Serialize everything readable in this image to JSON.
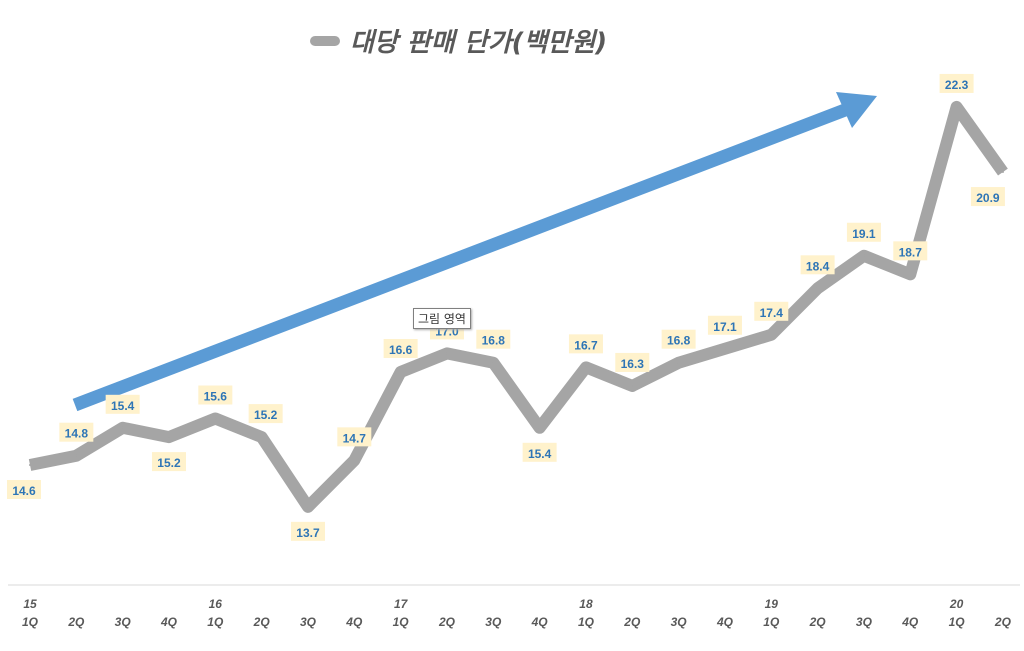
{
  "chart_data": {
    "type": "line",
    "title": "대당 판매 단가(백만원)",
    "legend": {
      "position": "top",
      "entries": [
        "대당 판매 단가(백만원)"
      ]
    },
    "categories": [
      "1Q",
      "2Q",
      "3Q",
      "4Q",
      "1Q",
      "2Q",
      "3Q",
      "4Q",
      "1Q",
      "2Q",
      "3Q",
      "4Q",
      "1Q",
      "2Q",
      "3Q",
      "4Q",
      "1Q",
      "2Q",
      "3Q",
      "4Q",
      "1Q",
      "2Q"
    ],
    "year_labels": [
      "15",
      "",
      "",
      "",
      "16",
      "",
      "",
      "",
      "17",
      "",
      "",
      "",
      "18",
      "",
      "",
      "",
      "19",
      "",
      "",
      "",
      "20",
      ""
    ],
    "series": [
      {
        "name": "대당 판매 단가(백만원)",
        "color": "#a5a5a5",
        "values": [
          14.6,
          14.8,
          15.4,
          15.2,
          15.6,
          15.2,
          13.7,
          14.7,
          16.6,
          17.0,
          16.8,
          15.4,
          16.7,
          16.3,
          16.8,
          17.1,
          17.4,
          18.4,
          19.1,
          18.7,
          22.3,
          20.9
        ]
      }
    ],
    "data_labels": [
      "14.6",
      "14.8",
      "15.4",
      "15.2",
      "15.6",
      "15.2",
      "13.7",
      "14.7",
      "16.6",
      "17.0",
      "16.8",
      "15.4",
      "16.7",
      "16.3",
      "16.8",
      "17.1",
      "17.4",
      "18.4",
      "19.1",
      "18.7",
      "22.3",
      "20.9"
    ],
    "label_color": "#2e75b6",
    "label_bg": "#fff2cc",
    "trend_arrow_color": "#5b9bd5",
    "grid": false
  },
  "tooltip": "그림 영역"
}
